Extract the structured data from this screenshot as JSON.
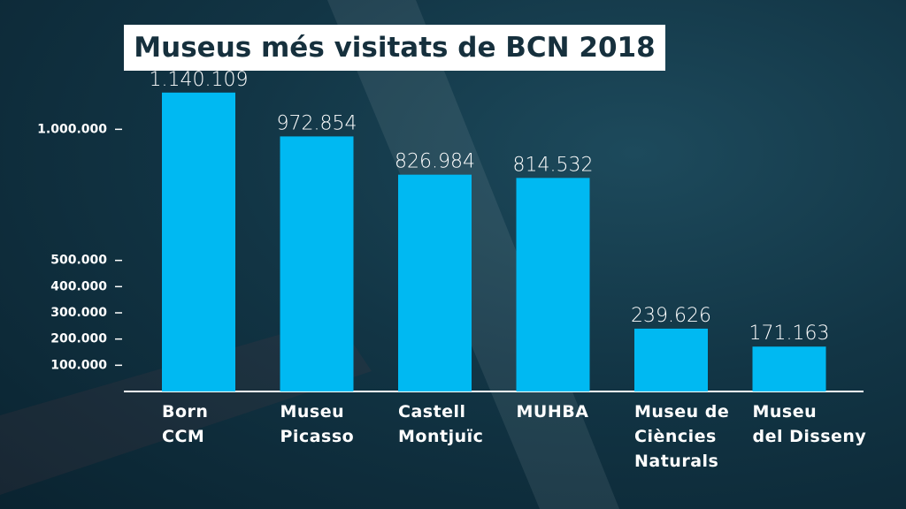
{
  "chart_data": {
    "type": "bar",
    "title": "Museus més visitats de BCN 2018",
    "categories": [
      "Born\nCCM",
      "Museu\nPicasso",
      "Castell\nMontjuïc",
      "MUHBA",
      "Museu de\nCiències\nNaturals",
      "Museu\ndel Disseny"
    ],
    "values": [
      1140109,
      972854,
      826984,
      814532,
      239626,
      171163
    ],
    "value_labels": [
      "1.140.109",
      "972.854",
      "826.984",
      "814.532",
      "239.626",
      "171.163"
    ],
    "color": "#00b9f2",
    "ylim": [
      0,
      1200000
    ],
    "yticks": [
      {
        "value": 100000,
        "label": "100.000"
      },
      {
        "value": 200000,
        "label": "200.000"
      },
      {
        "value": 300000,
        "label": "300.000"
      },
      {
        "value": 400000,
        "label": "400.000"
      },
      {
        "value": 500000,
        "label": "500.000"
      },
      {
        "value": 1000000,
        "label": "1.000.000"
      }
    ]
  }
}
